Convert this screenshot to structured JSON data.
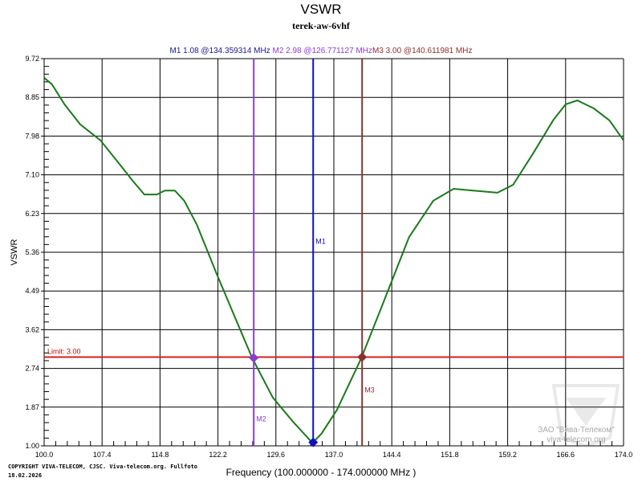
{
  "chart_data": {
    "type": "line",
    "title": "VSWR",
    "subtitle": "terek-aw-6vhf",
    "xlabel": "Frequency (100.000000 - 174.000000 MHz )",
    "ylabel": "VSWR",
    "xlim": [
      100,
      174
    ],
    "ylim": [
      1.0,
      9.72
    ],
    "grid": true,
    "x_ticks": [
      "100.0",
      "107.4",
      "114.8",
      "122.2",
      "129.6",
      "137.0",
      "144.4",
      "151.8",
      "159.2",
      "166.6",
      "174.0"
    ],
    "y_ticks": [
      "9.72",
      "8.85",
      "7.98",
      "7.10",
      "6.23",
      "5.36",
      "4.49",
      "3.62",
      "2.74",
      "1.87",
      "1.00"
    ],
    "series": [
      {
        "color": "#1a7a1a",
        "x": [
          100.0,
          101.0,
          102.6,
          104.6,
          107.2,
          109.7,
          111.3,
          112.8,
          114.4,
          115.4,
          116.7,
          117.9,
          119.5,
          122.0,
          124.6,
          126.6,
          129.2,
          131.8,
          134.1,
          134.36,
          135.4,
          137.4,
          140.5,
          143.6,
          146.6,
          149.7,
          152.3,
          154.8,
          157.9,
          159.9,
          162.5,
          165.0,
          166.6,
          168.1,
          170.2,
          172.2,
          174.0
        ],
        "y": [
          9.29,
          9.14,
          8.69,
          8.24,
          7.88,
          7.33,
          6.97,
          6.66,
          6.66,
          6.75,
          6.75,
          6.52,
          5.98,
          4.89,
          3.8,
          2.97,
          2.09,
          1.54,
          1.1,
          1.08,
          1.27,
          1.81,
          2.97,
          4.35,
          5.7,
          6.52,
          6.79,
          6.75,
          6.7,
          6.88,
          7.6,
          8.33,
          8.69,
          8.78,
          8.6,
          8.33,
          7.88
        ]
      }
    ],
    "limit": {
      "value": 3.0,
      "label": "Limit: 3.00",
      "color": "#d42020"
    },
    "markers": [
      {
        "name": "M1",
        "value": 1.08,
        "freq": 134.359314,
        "color": "#1010c0"
      },
      {
        "name": "M2",
        "value": 2.98,
        "freq": 126.771127,
        "color": "#8a3ed0"
      },
      {
        "name": "M3",
        "value": 3.0,
        "freq": 140.611981,
        "color": "#8b3030"
      }
    ],
    "marker_readout": {
      "m1": "M1   1.08 @134.359314 MHz",
      "m2": " M2   2.98 @126.771127 MHz",
      "m3": "M3   3.00 @140.611981 MHz"
    }
  },
  "footer": {
    "copyright": "COPYRIGHT VIVA-TELECOM, CJSC. Viva-telecom.org. Fullfoto",
    "date": "18.02.2026",
    "watermark_name": "ЗАО \"Вива-Телеком\"",
    "watermark_url": "viva-telecom.org"
  }
}
